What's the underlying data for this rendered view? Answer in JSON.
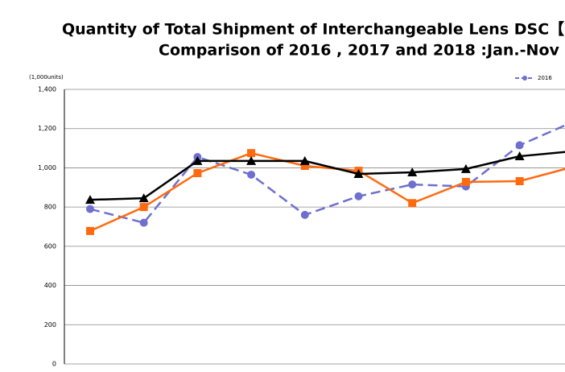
{
  "chart_data": {
    "type": "line",
    "title": "Quantity of Total Shipment of Interchangeable Lens DSC【W",
    "subtitle": "Comparison of 2016 , 2017 and 2018 :Jan.-Nov",
    "y_label": "(1,000units)",
    "categories": [
      null,
      null,
      null,
      null,
      null,
      null,
      null,
      null,
      null,
      null
    ],
    "series": [
      {
        "name": "2016",
        "color": "#6f6fcf",
        "marker": "circle",
        "dashed": true,
        "values": [
          790,
          720,
          1055,
          965,
          760,
          855,
          915,
          905,
          1115,
          1235
        ]
      },
      {
        "color": "#ff6a0f",
        "marker": "square",
        "dashed": false,
        "values": [
          678,
          800,
          973,
          1075,
          1010,
          985,
          820,
          928,
          932,
          1005
        ]
      },
      {
        "color": "#000000",
        "marker": "triangle",
        "dashed": false,
        "values": [
          837,
          845,
          1035,
          1035,
          1035,
          969,
          977,
          994,
          1059,
          1085
        ]
      }
    ],
    "ylim": [
      0,
      1400
    ],
    "yticks": [
      0,
      200,
      400,
      600,
      800,
      {
        "value": 1000,
        "label": "1,000"
      },
      {
        "value": 1200,
        "label": "1,200"
      },
      {
        "value": 1400,
        "label": "1,400"
      }
    ],
    "grid": true,
    "legend": "top-right"
  }
}
